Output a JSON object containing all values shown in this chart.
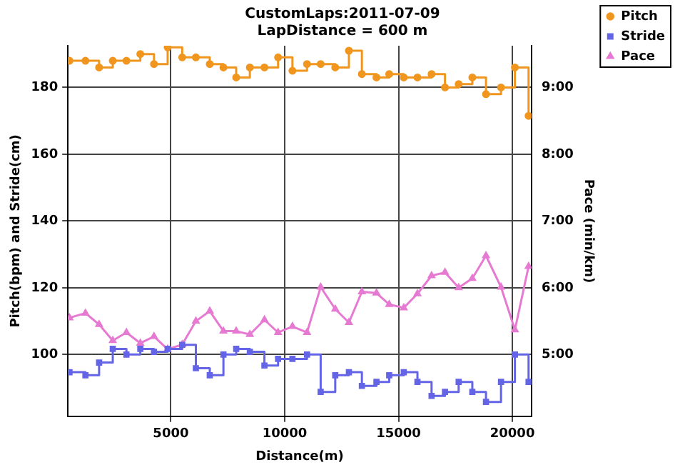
{
  "chart_data": {
    "type": "step",
    "title": "CustomLaps:2011-07-09",
    "subtitle": "LapDistance = 600 m",
    "xlabel": "Distance(m)",
    "ylabel": "Pitch(bpm) and Stride(cm)",
    "y2label": "Pace (min/km)",
    "x": [
      550,
      1250,
      1850,
      2450,
      3050,
      3660,
      4260,
      4860,
      5500,
      6100,
      6710,
      7310,
      7870,
      8470,
      9110,
      9710,
      10340,
      10980,
      11580,
      12220,
      12820,
      13390,
      14030,
      14590,
      15230,
      15830,
      16450,
      17040,
      17640,
      18240,
      18840,
      19500,
      20110,
      20710
    ],
    "series": [
      {
        "name": "Pitch",
        "marker": "circle",
        "color": "#f0961e",
        "values": [
          188,
          188,
          186,
          188,
          188,
          190,
          187,
          192,
          189,
          189,
          187,
          186,
          183,
          186,
          186,
          189,
          185,
          187,
          187,
          186,
          191,
          184,
          183,
          184,
          183,
          183,
          184,
          180,
          181,
          183,
          178,
          180,
          186,
          171.5
        ]
      },
      {
        "name": "Stride",
        "marker": "square",
        "color": "#6464e6",
        "values": [
          94.7,
          93.8,
          97.6,
          101.7,
          100,
          101.7,
          100.8,
          101.7,
          102.9,
          95.9,
          93.8,
          100,
          101.7,
          100.8,
          96.7,
          98.7,
          98.7,
          100,
          88.8,
          93.8,
          94.7,
          90.6,
          91.8,
          93.8,
          94.7,
          91.8,
          87.6,
          88.8,
          91.8,
          88.8,
          85.8,
          91.8,
          100,
          91.8
        ]
      },
      {
        "name": "Pace",
        "type": "line",
        "axis": "y2",
        "marker": "triangle",
        "color": "#e67ad2",
        "values": [
          5.55,
          5.62,
          5.45,
          5.21,
          5.33,
          5.17,
          5.27,
          5.08,
          5.15,
          5.5,
          5.65,
          5.35,
          5.35,
          5.3,
          5.52,
          5.33,
          5.42,
          5.33,
          6.01,
          5.68,
          5.48,
          5.94,
          5.92,
          5.75,
          5.7,
          5.91,
          6.18,
          6.23,
          6.0,
          6.14,
          6.48,
          6.01,
          5.37,
          6.32
        ]
      }
    ],
    "xlim": [
      480,
      20840
    ],
    "xticks": [
      5000,
      10000,
      15000,
      20000
    ],
    "ylim": [
      81.5,
      192.5
    ],
    "yticks": [
      100,
      120,
      140,
      160,
      180
    ],
    "y2lim": [
      4.075,
      9.625
    ],
    "y2ticks": [
      {
        "value": 5,
        "label": "5:00"
      },
      {
        "value": 6,
        "label": "6:00"
      },
      {
        "value": 7,
        "label": "7:00"
      },
      {
        "value": 8,
        "label": "8:00"
      },
      {
        "value": 9,
        "label": "9:00"
      }
    ],
    "grid": true,
    "legend": "top right"
  }
}
